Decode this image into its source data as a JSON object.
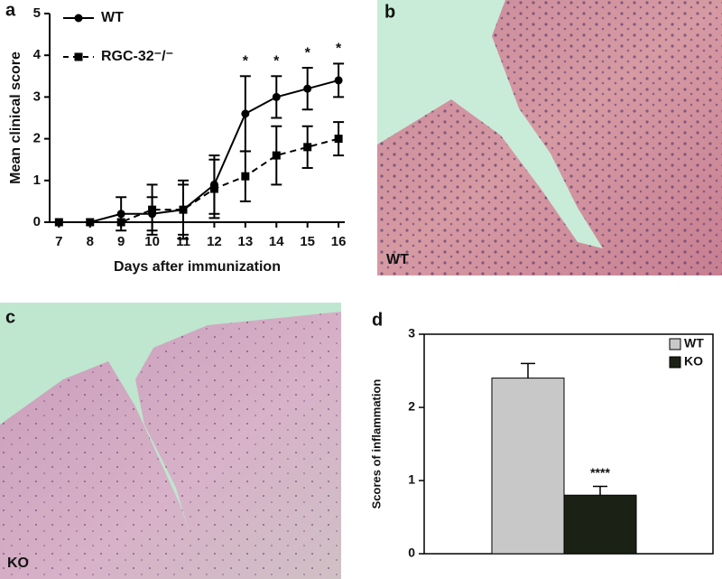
{
  "chart_data": [
    {
      "type": "line",
      "panel": "a",
      "xlabel": "Days after immunization",
      "ylabel": "Mean clinical score",
      "x": [
        7,
        8,
        9,
        10,
        11,
        12,
        13,
        14,
        15,
        16
      ],
      "xlim": [
        6.7,
        16.2
      ],
      "xticks": [
        7,
        8,
        9,
        10,
        11,
        12,
        13,
        14,
        15,
        16
      ],
      "ylim": [
        0,
        5
      ],
      "yticks": [
        0,
        1,
        2,
        3,
        4,
        5
      ],
      "series": [
        {
          "name": "WT",
          "color": "#000000",
          "marker": "circle",
          "dash": false,
          "values": [
            0,
            0,
            0.2,
            0.2,
            0.3,
            0.9,
            2.6,
            3.0,
            3.2,
            3.4
          ],
          "errors": [
            0,
            0,
            0.4,
            0.4,
            0.6,
            0.7,
            0.9,
            0.5,
            0.5,
            0.4
          ]
        },
        {
          "name": "RGC-32⁻/⁻",
          "color": "#000000",
          "marker": "square",
          "dash": true,
          "values": [
            0,
            0,
            0,
            0.3,
            0.3,
            0.8,
            1.1,
            1.6,
            1.8,
            2.0
          ],
          "errors": [
            0,
            0,
            0,
            0.6,
            0.7,
            0.7,
            0.6,
            0.7,
            0.5,
            0.4
          ]
        }
      ],
      "annotations": [
        {
          "text": "*",
          "x": 13
        },
        {
          "text": "*",
          "x": 14
        },
        {
          "text": "*",
          "x": 15
        },
        {
          "text": "*",
          "x": 16
        }
      ]
    },
    {
      "type": "image",
      "panel": "b",
      "label": "WT"
    },
    {
      "type": "image",
      "panel": "c",
      "label": "KO"
    },
    {
      "type": "bar",
      "panel": "d",
      "ylabel": "Scores of inflammation",
      "ylim": [
        0,
        3
      ],
      "yticks": [
        0,
        1,
        2,
        3
      ],
      "series": [
        {
          "name": "WT",
          "color": "#c8c8c8",
          "values": [
            2.4
          ],
          "errors": [
            0.2
          ]
        },
        {
          "name": "KO",
          "color": "#1c2116",
          "values": [
            0.8
          ],
          "errors": [
            0.12
          ],
          "annotation": "****"
        }
      ]
    }
  ]
}
